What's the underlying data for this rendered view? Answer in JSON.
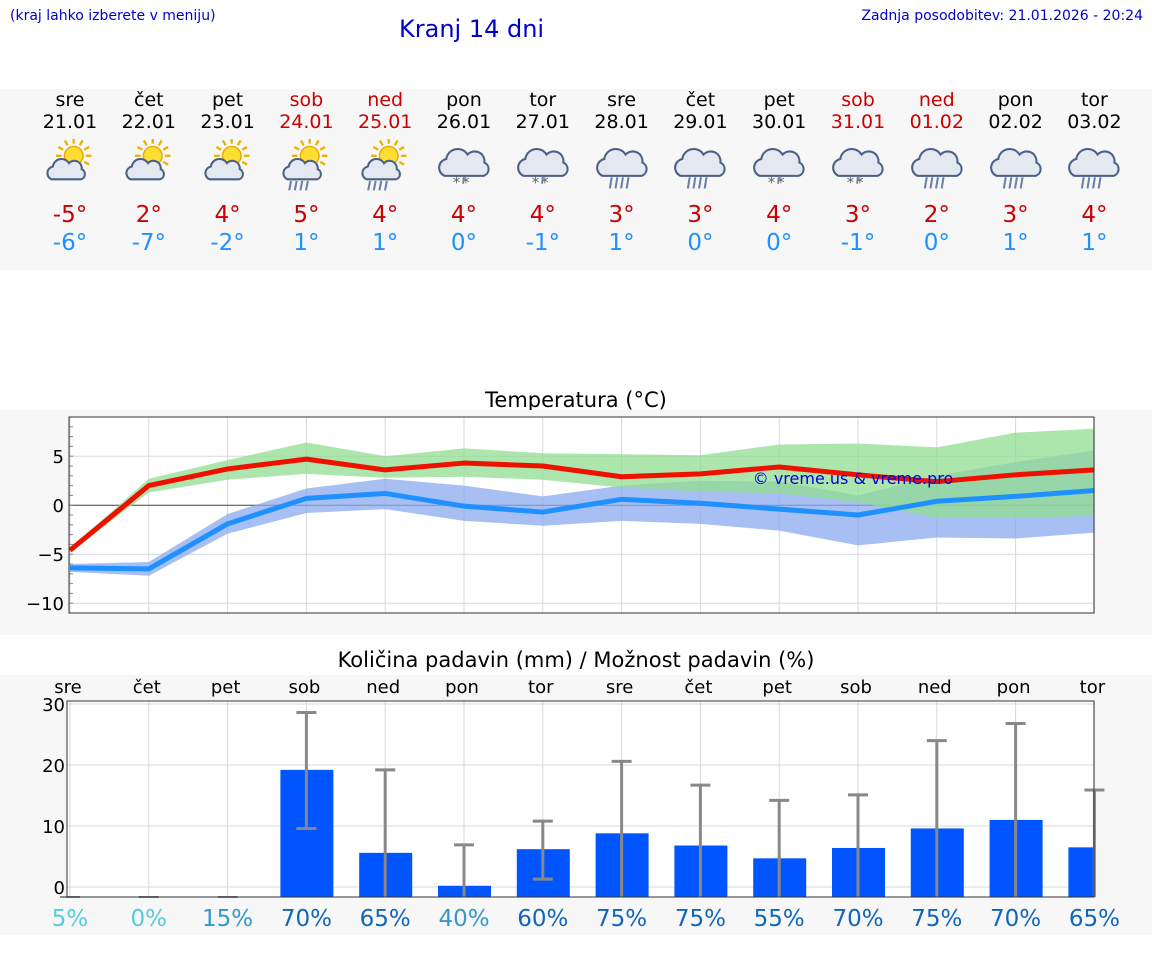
{
  "header": {
    "region_hint": "(kraj lahko izberete v meniju)",
    "title": "Kranj 14 dni",
    "updated": "Zadnja posodobitev: 21.01.2026 - 20:24"
  },
  "days": [
    {
      "name": "sre",
      "date": "21.01",
      "weekend": false,
      "icon": "sun-cloud-icon",
      "max": "-5°",
      "min": "-6°"
    },
    {
      "name": "čet",
      "date": "22.01",
      "weekend": false,
      "icon": "sun-cloud-icon",
      "max": "2°",
      "min": "-7°"
    },
    {
      "name": "pet",
      "date": "23.01",
      "weekend": false,
      "icon": "sun-cloud-icon",
      "max": "4°",
      "min": "-2°"
    },
    {
      "name": "sob",
      "date": "24.01",
      "weekend": true,
      "icon": "sun-cloud-rain-icon",
      "max": "5°",
      "min": "1°"
    },
    {
      "name": "ned",
      "date": "25.01",
      "weekend": true,
      "icon": "sun-cloud-rain-icon",
      "max": "4°",
      "min": "1°"
    },
    {
      "name": "pon",
      "date": "26.01",
      "weekend": false,
      "icon": "cloud-snow-icon",
      "max": "4°",
      "min": "0°"
    },
    {
      "name": "tor",
      "date": "27.01",
      "weekend": false,
      "icon": "cloud-snow-icon",
      "max": "4°",
      "min": "-1°"
    },
    {
      "name": "sre",
      "date": "28.01",
      "weekend": false,
      "icon": "cloud-rain-icon",
      "max": "3°",
      "min": "1°"
    },
    {
      "name": "čet",
      "date": "29.01",
      "weekend": false,
      "icon": "cloud-rain-icon",
      "max": "3°",
      "min": "0°"
    },
    {
      "name": "pet",
      "date": "30.01",
      "weekend": false,
      "icon": "cloud-snow-icon",
      "max": "4°",
      "min": "0°"
    },
    {
      "name": "sob",
      "date": "31.01",
      "weekend": true,
      "icon": "cloud-snow-icon",
      "max": "3°",
      "min": "-1°"
    },
    {
      "name": "ned",
      "date": "01.02",
      "weekend": true,
      "icon": "cloud-rain-icon",
      "max": "2°",
      "min": "0°"
    },
    {
      "name": "pon",
      "date": "02.02",
      "weekend": false,
      "icon": "cloud-rain-icon",
      "max": "3°",
      "min": "1°"
    },
    {
      "name": "tor",
      "date": "03.02",
      "weekend": false,
      "icon": "cloud-rain-icon",
      "max": "4°",
      "min": "1°"
    }
  ],
  "colors": {
    "max_line": "#ee1100",
    "min_line": "#1e90ff",
    "max_band": "#90dd90",
    "min_band": "#8aaaee",
    "bar": "#0055ff",
    "whisker": "#888888",
    "prob_low": "#55ccdd",
    "prob_mid": "#3399cc",
    "prob_high": "#1166bb"
  },
  "chart_data": [
    {
      "type": "line",
      "title": "Temperatura (°C)",
      "ylim": [
        -11,
        9
      ],
      "yticks": [
        "5",
        "0",
        "−5",
        "−10"
      ],
      "ytick_values": [
        5,
        0,
        -5,
        -10
      ],
      "x": [
        0,
        1,
        2,
        3,
        4,
        5,
        6,
        7,
        8,
        9,
        10,
        11,
        12,
        13
      ],
      "series": [
        {
          "name": "max",
          "values": [
            -4.6,
            2.0,
            3.7,
            4.7,
            3.6,
            4.3,
            4.0,
            2.9,
            3.2,
            3.9,
            3.1,
            2.4,
            3.1,
            3.6
          ],
          "band_low": [
            -4.8,
            1.3,
            2.6,
            3.2,
            2.8,
            2.9,
            2.6,
            1.8,
            1.4,
            1.2,
            0.3,
            -1.3,
            -1.3,
            -1.1
          ],
          "band_high": [
            -4.4,
            2.7,
            4.6,
            6.4,
            5.0,
            5.8,
            5.3,
            5.2,
            5.1,
            6.2,
            6.3,
            5.9,
            7.4,
            7.8
          ]
        },
        {
          "name": "min",
          "values": [
            -6.4,
            -6.5,
            -1.9,
            0.7,
            1.2,
            -0.1,
            -0.7,
            0.6,
            0.2,
            -0.4,
            -1.0,
            0.4,
            0.9,
            1.5
          ],
          "band_low": [
            -6.8,
            -7.2,
            -2.9,
            -0.8,
            -0.4,
            -1.6,
            -2.1,
            -1.6,
            -1.9,
            -2.6,
            -4.1,
            -3.3,
            -3.4,
            -2.8
          ],
          "band_high": [
            -6.0,
            -5.8,
            -0.9,
            1.7,
            2.7,
            2.0,
            0.9,
            2.0,
            2.5,
            2.4,
            1.0,
            3.0,
            4.4,
            5.6
          ]
        }
      ],
      "watermark": "© vreme.us & vreme.pro"
    },
    {
      "type": "bar",
      "title": "Količina padavin (mm) / Možnost padavin (%)",
      "ylim": [
        0,
        30
      ],
      "yticks": [
        "30",
        "20",
        "10",
        "0"
      ],
      "ytick_values": [
        30,
        20,
        10,
        0
      ],
      "categories": [
        "sre",
        "čet",
        "pet",
        "sob",
        "ned",
        "pon",
        "tor",
        "sre",
        "čet",
        "pet",
        "sob",
        "ned",
        "pon",
        "tor"
      ],
      "values": [
        0,
        0,
        0,
        19.2,
        5.6,
        0.2,
        6.2,
        8.8,
        6.8,
        4.7,
        6.4,
        9.6,
        11.0,
        6.5
      ],
      "err_low": [
        0,
        0,
        0,
        9.6,
        0,
        0,
        1.3,
        0,
        0,
        0,
        0,
        0,
        0,
        0
      ],
      "err_high": [
        0,
        0,
        0,
        28.6,
        19.2,
        6.9,
        10.8,
        20.6,
        16.7,
        14.2,
        15.1,
        24.0,
        26.8,
        15.9
      ],
      "probabilities": [
        "5%",
        "0%",
        "15%",
        "70%",
        "65%",
        "40%",
        "60%",
        "75%",
        "75%",
        "55%",
        "70%",
        "75%",
        "70%",
        "65%"
      ],
      "prob_values": [
        5,
        0,
        15,
        70,
        65,
        40,
        60,
        75,
        75,
        55,
        70,
        75,
        70,
        65
      ]
    }
  ]
}
